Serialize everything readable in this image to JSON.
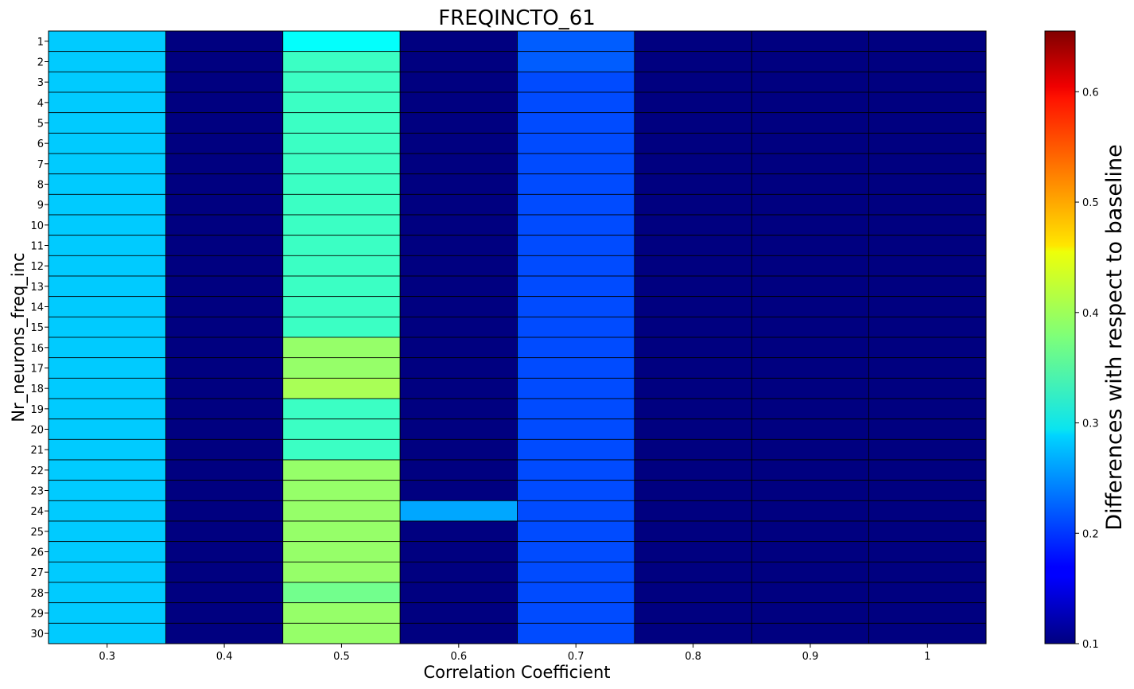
{
  "chart_data": {
    "type": "heatmap",
    "title": "FREQINCTO_61",
    "xlabel": "Correlation Coefficient",
    "ylabel": "Nr_neurons_freq_inc",
    "colorbar_label": "Differences with respect to baseline",
    "colormap": "jet",
    "color_range": [
      0.1,
      0.655
    ],
    "colorbar_ticks": [
      "0.1",
      "0.2",
      "0.3",
      "0.4",
      "0.5",
      "0.6"
    ],
    "x": [
      "0.3",
      "0.4",
      "0.5",
      "0.6",
      "0.7",
      "0.8",
      "0.9",
      "1"
    ],
    "y": [
      "1",
      "2",
      "3",
      "4",
      "5",
      "6",
      "7",
      "8",
      "9",
      "10",
      "11",
      "12",
      "13",
      "14",
      "15",
      "16",
      "17",
      "18",
      "19",
      "20",
      "21",
      "22",
      "23",
      "24",
      "25",
      "26",
      "27",
      "28",
      "29",
      "30"
    ],
    "values": [
      [
        0.28,
        0.1,
        0.31,
        0.1,
        0.22,
        0.1,
        0.1,
        0.1
      ],
      [
        0.28,
        0.1,
        0.34,
        0.1,
        0.22,
        0.1,
        0.1,
        0.1
      ],
      [
        0.28,
        0.1,
        0.34,
        0.1,
        0.21,
        0.1,
        0.1,
        0.1
      ],
      [
        0.28,
        0.1,
        0.34,
        0.1,
        0.21,
        0.1,
        0.1,
        0.1
      ],
      [
        0.28,
        0.1,
        0.34,
        0.1,
        0.21,
        0.1,
        0.1,
        0.1
      ],
      [
        0.28,
        0.1,
        0.34,
        0.1,
        0.21,
        0.1,
        0.1,
        0.1
      ],
      [
        0.28,
        0.1,
        0.34,
        0.1,
        0.21,
        0.1,
        0.1,
        0.1
      ],
      [
        0.28,
        0.1,
        0.34,
        0.1,
        0.21,
        0.1,
        0.1,
        0.1
      ],
      [
        0.28,
        0.1,
        0.34,
        0.1,
        0.21,
        0.1,
        0.1,
        0.1
      ],
      [
        0.28,
        0.1,
        0.34,
        0.1,
        0.21,
        0.1,
        0.1,
        0.1
      ],
      [
        0.28,
        0.1,
        0.34,
        0.1,
        0.21,
        0.1,
        0.1,
        0.1
      ],
      [
        0.28,
        0.1,
        0.34,
        0.1,
        0.21,
        0.1,
        0.1,
        0.1
      ],
      [
        0.28,
        0.1,
        0.34,
        0.1,
        0.21,
        0.1,
        0.1,
        0.1
      ],
      [
        0.28,
        0.1,
        0.34,
        0.1,
        0.21,
        0.1,
        0.1,
        0.1
      ],
      [
        0.28,
        0.1,
        0.34,
        0.1,
        0.21,
        0.1,
        0.1,
        0.1
      ],
      [
        0.28,
        0.1,
        0.39,
        0.1,
        0.21,
        0.1,
        0.1,
        0.1
      ],
      [
        0.28,
        0.1,
        0.39,
        0.1,
        0.21,
        0.1,
        0.1,
        0.1
      ],
      [
        0.28,
        0.1,
        0.4,
        0.1,
        0.21,
        0.1,
        0.1,
        0.1
      ],
      [
        0.28,
        0.1,
        0.34,
        0.1,
        0.21,
        0.1,
        0.1,
        0.1
      ],
      [
        0.28,
        0.1,
        0.34,
        0.1,
        0.21,
        0.1,
        0.1,
        0.1
      ],
      [
        0.28,
        0.1,
        0.34,
        0.1,
        0.21,
        0.1,
        0.1,
        0.1
      ],
      [
        0.28,
        0.1,
        0.39,
        0.1,
        0.21,
        0.1,
        0.1,
        0.1
      ],
      [
        0.28,
        0.1,
        0.39,
        0.1,
        0.21,
        0.1,
        0.1,
        0.1
      ],
      [
        0.28,
        0.1,
        0.39,
        0.26,
        0.21,
        0.1,
        0.1,
        0.1
      ],
      [
        0.28,
        0.1,
        0.39,
        0.1,
        0.21,
        0.1,
        0.1,
        0.1
      ],
      [
        0.28,
        0.1,
        0.39,
        0.1,
        0.21,
        0.1,
        0.1,
        0.1
      ],
      [
        0.28,
        0.1,
        0.39,
        0.1,
        0.21,
        0.1,
        0.1,
        0.1
      ],
      [
        0.28,
        0.1,
        0.37,
        0.1,
        0.21,
        0.1,
        0.1,
        0.1
      ],
      [
        0.28,
        0.1,
        0.39,
        0.1,
        0.21,
        0.1,
        0.1,
        0.1
      ],
      [
        0.28,
        0.1,
        0.39,
        0.1,
        0.21,
        0.1,
        0.1,
        0.1
      ]
    ]
  }
}
